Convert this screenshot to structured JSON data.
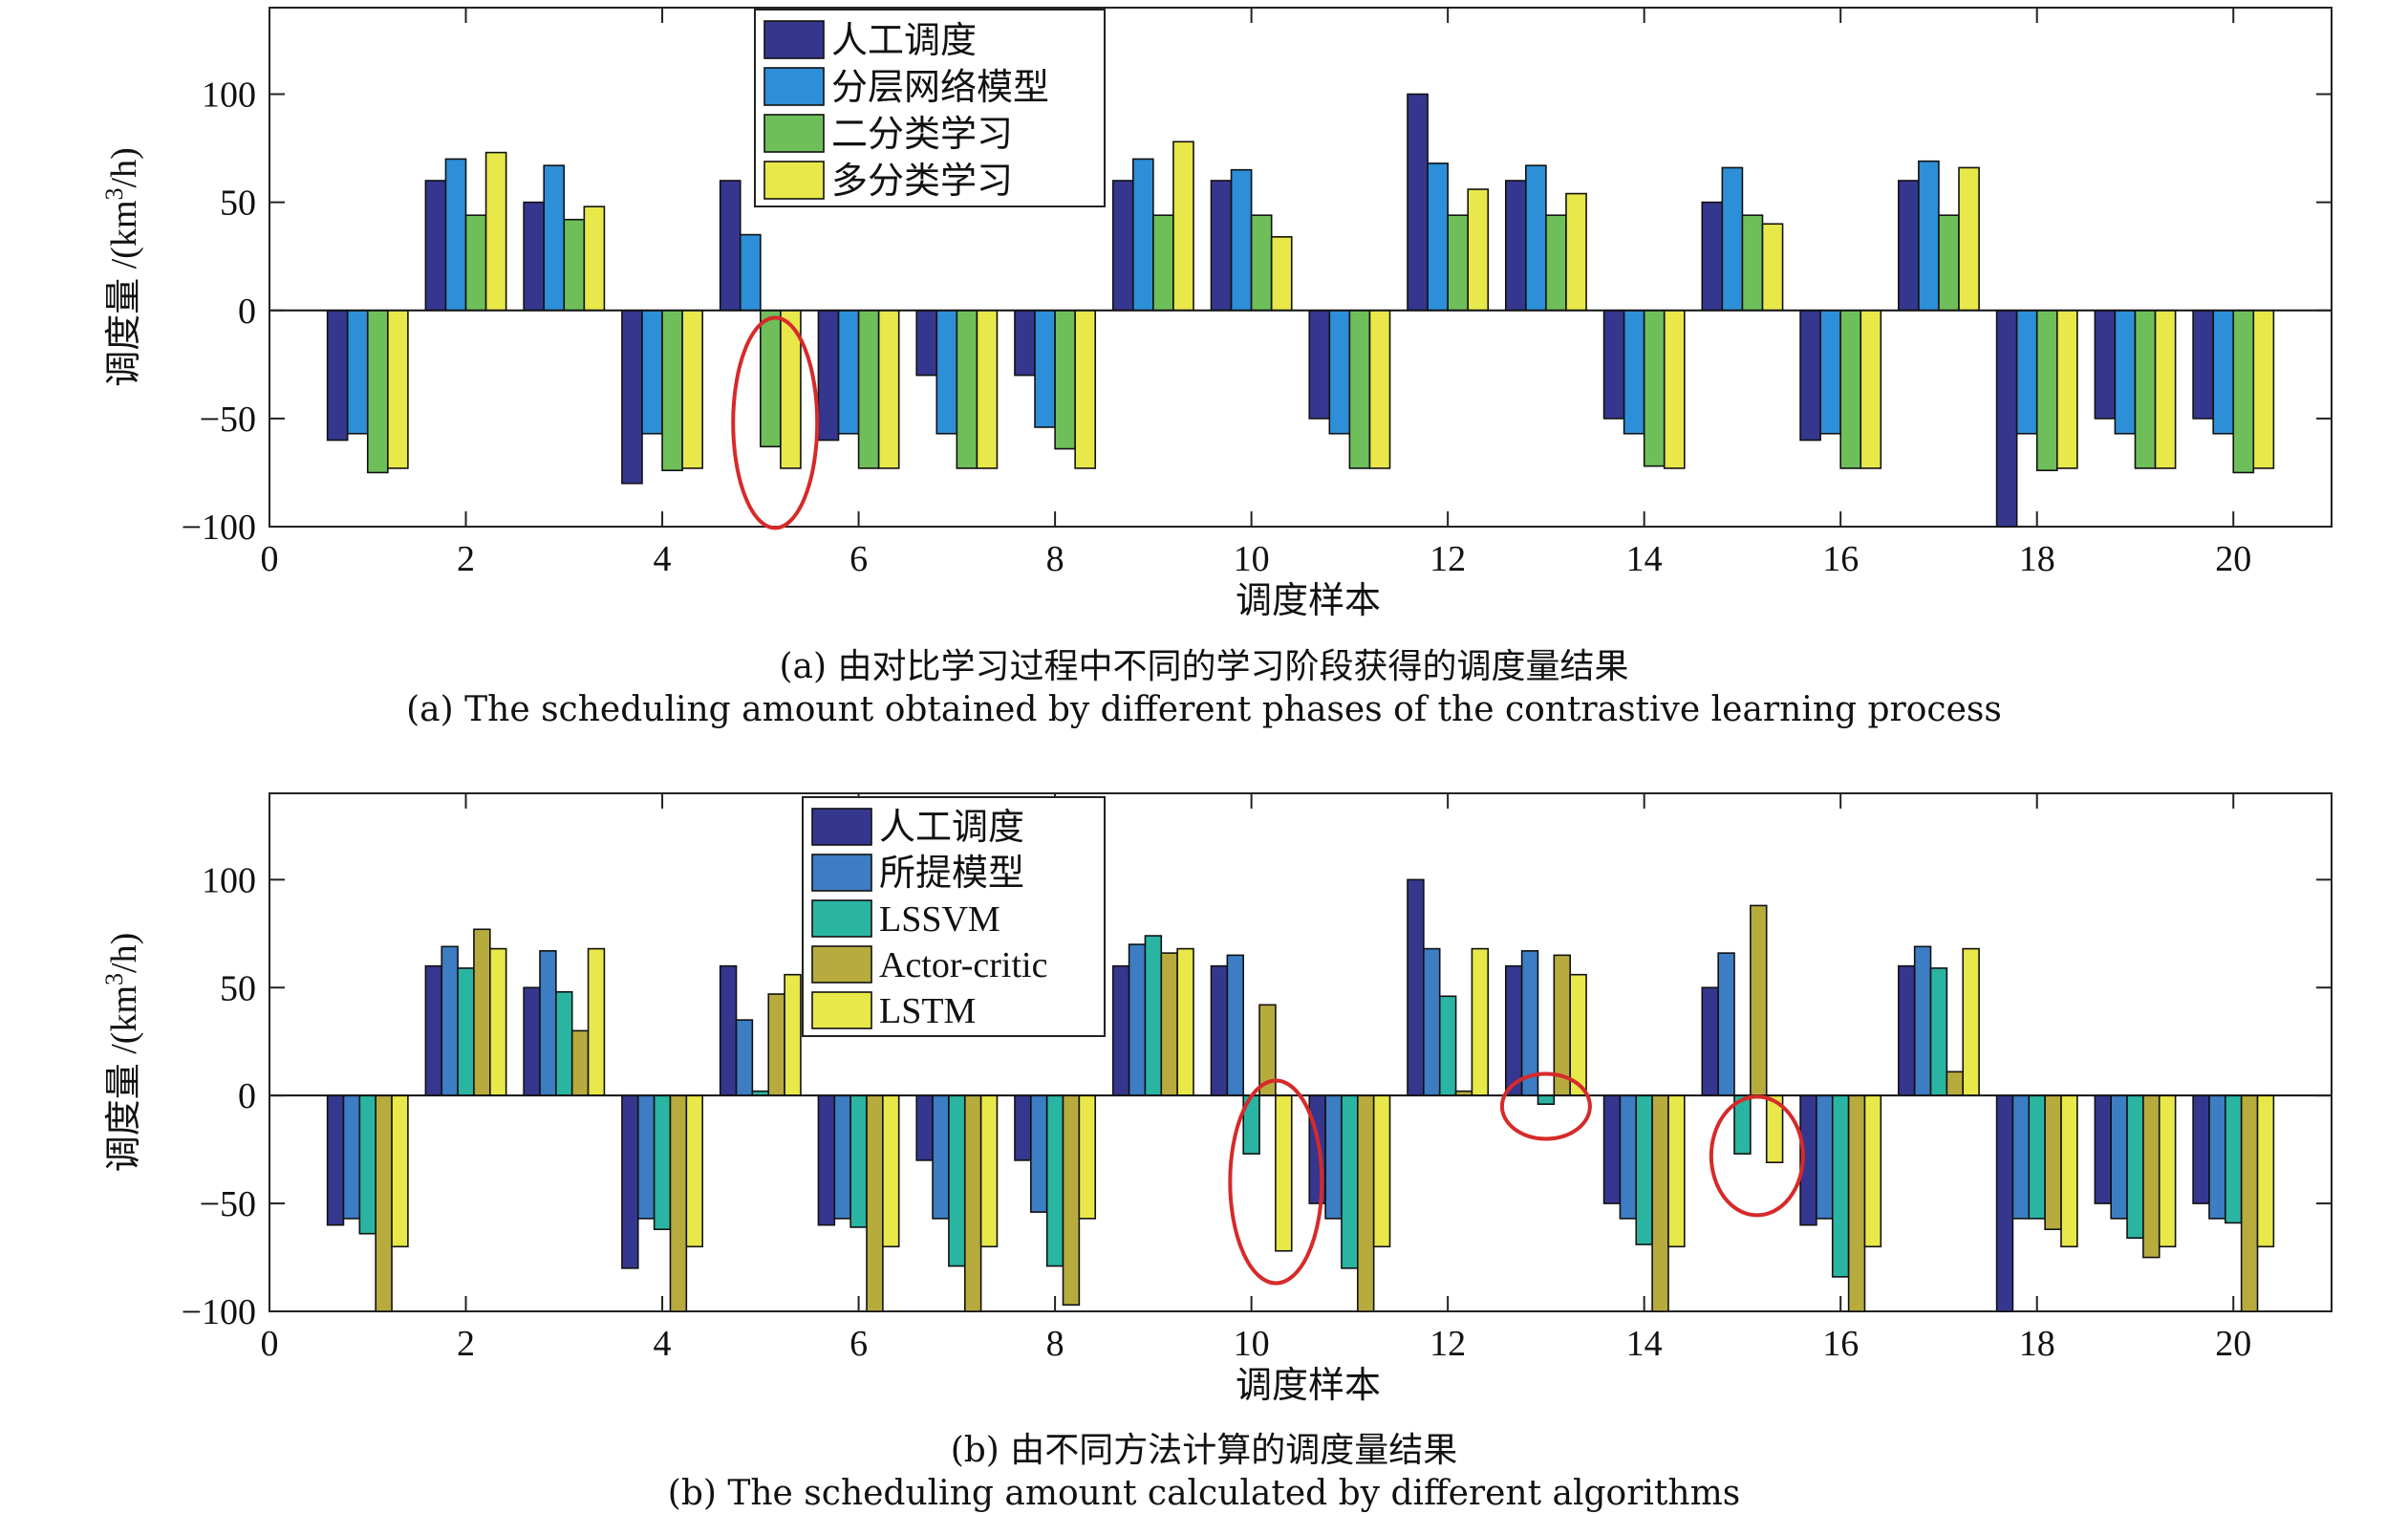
{
  "charts": [
    {
      "chart_data": {
        "type": "bar",
        "x": [
          1,
          2,
          3,
          4,
          5,
          6,
          7,
          8,
          9,
          10,
          11,
          12,
          13,
          14,
          15,
          16,
          17,
          18,
          19,
          20
        ],
        "xlabel": "调度样本",
        "ylabel_main": "调度量 /(km",
        "ylabel_sup": "3",
        "ylabel_tail": "/h)",
        "xlim": [
          0,
          21
        ],
        "ylim": [
          -100,
          140
        ],
        "xticks": [
          0,
          2,
          4,
          6,
          8,
          10,
          12,
          14,
          16,
          18,
          20
        ],
        "yticks": [
          -100,
          -50,
          0,
          50,
          100
        ],
        "legend_position": "top-left",
        "series": [
          {
            "name": "人工调度",
            "color": "#35378f",
            "values": [
              -60,
              60,
              50,
              -80,
              60,
              -60,
              -30,
              -30,
              60,
              60,
              -50,
              100,
              60,
              -50,
              50,
              -60,
              60,
              -100,
              -50,
              -50
            ]
          },
          {
            "name": "分层网络模型",
            "color": "#2d8fd8",
            "values": [
              -57,
              70,
              67,
              -57,
              35,
              -57,
              -57,
              -54,
              70,
              65,
              -57,
              68,
              67,
              -57,
              66,
              -57,
              69,
              -57,
              -57,
              -57
            ]
          },
          {
            "name": "二分类学习",
            "color": "#6ebf5a",
            "values": [
              -75,
              44,
              42,
              -74,
              -63,
              -73,
              -73,
              -64,
              44,
              44,
              -73,
              44,
              44,
              -72,
              44,
              -73,
              44,
              -74,
              -73,
              -75
            ]
          },
          {
            "name": "多分类学习",
            "color": "#e8e84a",
            "values": [
              -73,
              73,
              48,
              -73,
              -73,
              -73,
              -73,
              -73,
              78,
              34,
              -73,
              56,
              54,
              -73,
              40,
              -73,
              66,
              -73,
              -73,
              -73
            ]
          }
        ],
        "highlight": {
          "x": 5.15,
          "y": -52,
          "shape": "ellipse",
          "color": "#d62a2a"
        }
      },
      "caption_cn": "(a) 由对比学习过程中不同的学习阶段获得的调度量结果",
      "caption_en": "(a) The scheduling amount obtained by different phases of the contrastive learning process"
    },
    {
      "chart_data": {
        "type": "bar",
        "x": [
          1,
          2,
          3,
          4,
          5,
          6,
          7,
          8,
          9,
          10,
          11,
          12,
          13,
          14,
          15,
          16,
          17,
          18,
          19,
          20
        ],
        "xlabel": "调度样本",
        "ylabel_main": "调度量 /(km",
        "ylabel_sup": "3",
        "ylabel_tail": "/h)",
        "xlim": [
          0,
          21
        ],
        "ylim": [
          -100,
          140
        ],
        "xticks": [
          0,
          2,
          4,
          6,
          8,
          10,
          12,
          14,
          16,
          18,
          20
        ],
        "yticks": [
          -100,
          -50,
          0,
          50,
          100
        ],
        "legend_position": "top-left",
        "series": [
          {
            "name": "人工调度",
            "color": "#35378f",
            "values": [
              -60,
              60,
              50,
              -80,
              60,
              -60,
              -30,
              -30,
              60,
              60,
              -50,
              100,
              60,
              -50,
              50,
              -60,
              60,
              -100,
              -50,
              -50
            ]
          },
          {
            "name": "所提模型",
            "color": "#3c7dc4",
            "values": [
              -57,
              69,
              67,
              -57,
              35,
              -57,
              -57,
              -54,
              70,
              65,
              -57,
              68,
              67,
              -57,
              66,
              -57,
              69,
              -57,
              -57,
              -57
            ]
          },
          {
            "name": "LSSVM",
            "color": "#2ab5a2",
            "values": [
              -64,
              59,
              48,
              -62,
              2,
              -61,
              -79,
              -79,
              74,
              -27,
              -80,
              46,
              -4,
              -69,
              -27,
              -84,
              59,
              -57,
              -66,
              -59
            ]
          },
          {
            "name": "Actor-critic",
            "color": "#b8ab3e",
            "values": [
              -100,
              77,
              30,
              -100,
              47,
              -100,
              -100,
              -97,
              66,
              42,
              -100,
              2,
              65,
              -100,
              88,
              -100,
              11,
              -62,
              -75,
              -100
            ]
          },
          {
            "name": "LSTM",
            "color": "#e8e84a",
            "values": [
              -70,
              68,
              68,
              -70,
              56,
              -70,
              -70,
              -57,
              68,
              -72,
              -70,
              68,
              56,
              -70,
              -31,
              -70,
              68,
              -70,
              -70,
              -70
            ]
          }
        ],
        "highlights": [
          {
            "x": 10.25,
            "y": -40,
            "shape": "ellipse",
            "color": "#d62a2a"
          },
          {
            "x": 13.0,
            "y": -5,
            "shape": "ellipse",
            "color": "#d62a2a"
          },
          {
            "x": 15.15,
            "y": -28,
            "shape": "ellipse",
            "color": "#d62a2a"
          }
        ]
      },
      "caption_cn": "(b) 由不同方法计算的调度量结果",
      "caption_en": "(b) The scheduling amount calculated by different algorithms"
    }
  ]
}
